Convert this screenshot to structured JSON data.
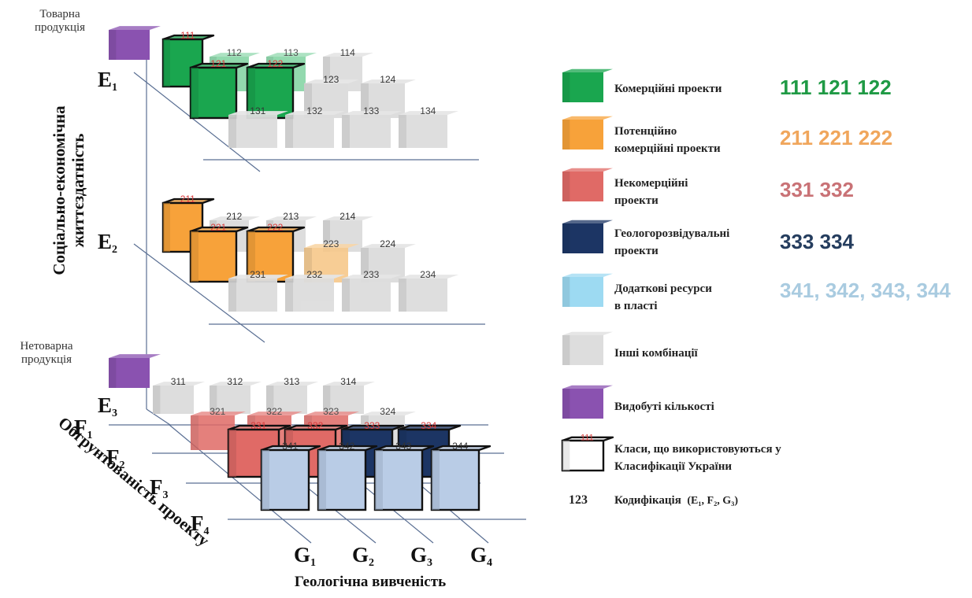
{
  "labels": {
    "tovarna_produktsia": "Товарна продукція",
    "netovarna_produktsia": "Нетоварна продукція",
    "y_axis_title_line1": "Соціально-економічна",
    "y_axis_title_line2": "життєздатність",
    "f_axis_title": "Обгрунтованість проекту",
    "g_axis_title": "Геологічна вивченість"
  },
  "axis_letters": {
    "E": [
      {
        "base": "E",
        "sub": "1"
      },
      {
        "base": "E",
        "sub": "2"
      },
      {
        "base": "E",
        "sub": "3"
      }
    ],
    "F": [
      {
        "base": "F",
        "sub": "1"
      },
      {
        "base": "F",
        "sub": "2"
      },
      {
        "base": "F",
        "sub": "3"
      },
      {
        "base": "F",
        "sub": "4"
      }
    ],
    "G": [
      {
        "base": "G",
        "sub": "1"
      },
      {
        "base": "G",
        "sub": "2"
      },
      {
        "base": "G",
        "sub": "3"
      },
      {
        "base": "G",
        "sub": "4"
      }
    ]
  },
  "colors": {
    "green": "#1aa64f",
    "orange": "#f7a23a",
    "red": "#e06a66",
    "navy": "#1c3564",
    "lightblue": "#9ddaf2",
    "grey": "#dddddd",
    "purple": "#8a52b0",
    "code_green": "#1f9a45",
    "code_orange": "#f0a65c",
    "code_red": "#c97276",
    "code_navy": "#253d5e",
    "code_lightblue": "#a9cbe0",
    "class_number_red": "#d93b3b"
  },
  "cubes": {
    "e1": {
      "back": [
        "112",
        "113",
        "114"
      ],
      "middle": [
        "123",
        "124"
      ],
      "front": [
        "131",
        "132",
        "133",
        "134"
      ],
      "highlight": [
        "111",
        "121",
        "122"
      ]
    },
    "e2": {
      "back": [
        "212",
        "213",
        "214"
      ],
      "middle": [
        "223",
        "224"
      ],
      "front": [
        "231",
        "232",
        "233",
        "234"
      ],
      "highlight": [
        "211",
        "221",
        "222"
      ]
    },
    "e3": {
      "row1": [
        "311",
        "312",
        "313",
        "314"
      ],
      "row2": [
        "321",
        "322",
        "323",
        "324"
      ],
      "row3": [
        "331",
        "332",
        "333",
        "334"
      ],
      "row4": [
        "341",
        "342",
        "343",
        "344"
      ]
    }
  },
  "legend": [
    {
      "color": "green",
      "label_lines": [
        "Комерційні проекти"
      ],
      "codes": "111 121 122",
      "code_color": "code_green"
    },
    {
      "color": "orange",
      "label_lines": [
        "Потенційно",
        "комерційні проекти"
      ],
      "codes": "211 221 222",
      "code_color": "code_orange"
    },
    {
      "color": "red",
      "label_lines": [
        "Некомерційні",
        "проекти"
      ],
      "codes": "331 332",
      "code_color": "code_red"
    },
    {
      "color": "navy",
      "label_lines": [
        "Геологорозвідувальні",
        "проекти"
      ],
      "codes": "333 334",
      "code_color": "code_navy"
    },
    {
      "color": "lightblue",
      "label_lines": [
        "Додаткові ресурси",
        "в пласті"
      ],
      "codes": "341, 342, 343, 344",
      "code_color": "code_lightblue"
    },
    {
      "color": "grey",
      "label_lines": [
        "Інші комбінації"
      ],
      "codes": "",
      "code_color": ""
    },
    {
      "color": "purple",
      "label_lines": [
        "Видобуті кількості"
      ],
      "codes": "",
      "code_color": ""
    },
    {
      "color": "white",
      "label_lines": [
        "Класи, що використовуються у",
        "Класифікації України"
      ],
      "codes": "",
      "code_color": "",
      "sample": "111"
    }
  ],
  "codification": {
    "number": "123",
    "text": "Кодифікація",
    "params": "(E₁, F₂, G₃)"
  }
}
